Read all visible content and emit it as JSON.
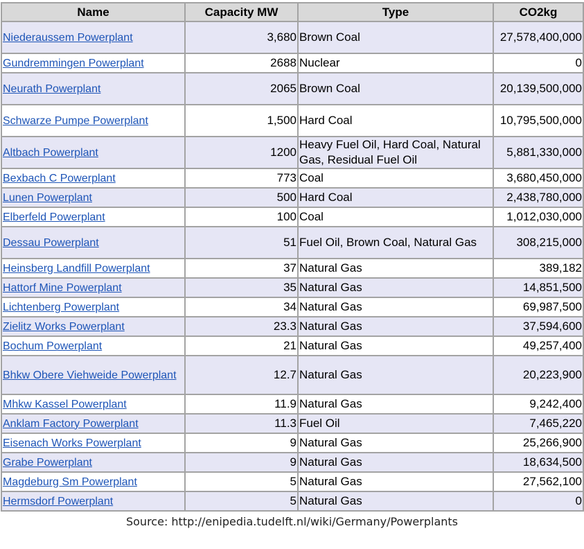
{
  "table": {
    "headers": [
      "Name",
      "Capacity MW",
      "Type",
      "CO2kg"
    ],
    "rows": [
      {
        "name": "Niederaussem Powerplant",
        "capacity": "3,680",
        "type": "Brown Coal",
        "co2": "27,578,400,000"
      },
      {
        "name": "Gundremmingen Powerplant",
        "capacity": "2688",
        "type": "Nuclear",
        "co2": "0"
      },
      {
        "name": "Neurath Powerplant",
        "capacity": "2065",
        "type": "Brown Coal",
        "co2": "20,139,500,000"
      },
      {
        "name": "Schwarze Pumpe Powerplant",
        "capacity": "1,500",
        "type": "Hard Coal",
        "co2": "10,795,500,000"
      },
      {
        "name": "Altbach Powerplant",
        "capacity": "1200",
        "type": "Heavy Fuel Oil, Hard Coal, Natural Gas, Residual Fuel Oil",
        "co2": "5,881,330,000"
      },
      {
        "name": "Bexbach C Powerplant",
        "capacity": "773",
        "type": "Coal",
        "co2": "3,680,450,000"
      },
      {
        "name": "Lunen Powerplant",
        "capacity": "500",
        "type": "Hard Coal",
        "co2": "2,438,780,000"
      },
      {
        "name": "Elberfeld Powerplant",
        "capacity": "100",
        "type": "Coal",
        "co2": "1,012,030,000"
      },
      {
        "name": "Dessau Powerplant",
        "capacity": "51",
        "type": "Fuel Oil, Brown Coal, Natural Gas",
        "co2": "308,215,000"
      },
      {
        "name": "Heinsberg Landfill Powerplant",
        "capacity": "37",
        "type": "Natural Gas",
        "co2": "389,182"
      },
      {
        "name": "Hattorf Mine Powerplant",
        "capacity": "35",
        "type": "Natural Gas",
        "co2": "14,851,500"
      },
      {
        "name": "Lichtenberg Powerplant",
        "capacity": "34",
        "type": "Natural Gas",
        "co2": "69,987,500"
      },
      {
        "name": "Zielitz Works Powerplant",
        "capacity": "23.3",
        "type": "Natural Gas",
        "co2": "37,594,600"
      },
      {
        "name": "Bochum Powerplant",
        "capacity": "21",
        "type": "Natural Gas",
        "co2": "49,257,400"
      },
      {
        "name": "Bhkw Obere Viehweide Powerplant",
        "capacity": "12.7",
        "type": "Natural Gas",
        "co2": "20,223,900"
      },
      {
        "name": "Mhkw Kassel Powerplant",
        "capacity": "11.9",
        "type": "Natural Gas",
        "co2": "9,242,400"
      },
      {
        "name": "Anklam Factory Powerplant",
        "capacity": "11.3",
        "type": "Fuel Oil",
        "co2": "7,465,220"
      },
      {
        "name": "Eisenach Works Powerplant",
        "capacity": "9",
        "type": "Natural Gas",
        "co2": "25,266,900"
      },
      {
        "name": "Grabe Powerplant",
        "capacity": "9",
        "type": "Natural Gas",
        "co2": "18,634,500"
      },
      {
        "name": "Magdeburg Sm Powerplant",
        "capacity": "5",
        "type": "Natural Gas",
        "co2": "27,562,100"
      },
      {
        "name": "Hermsdorf Powerplant",
        "capacity": "5",
        "type": "Natural Gas",
        "co2": "0"
      }
    ]
  },
  "source": "Source: http://enipedia.tudelft.nl/wiki/Germany/Powerplants",
  "colors": {
    "link": "#1e55b7",
    "header_bg": "#d9d9d9",
    "stripe": "#e6e6f5",
    "border": "#a3a3a3"
  }
}
